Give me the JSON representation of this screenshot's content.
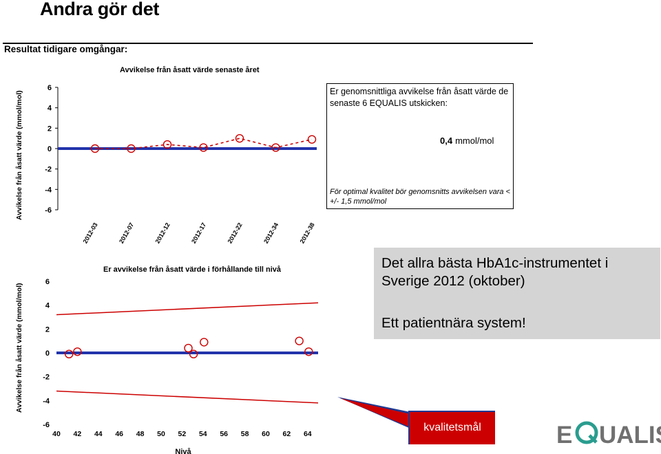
{
  "slide": {
    "title": "Andra gör det",
    "section_heading": "Resultat tidigare omgångar:"
  },
  "chart_data": [
    {
      "type": "line",
      "title": "Avvikelse från åsatt värde senaste året",
      "xlabel": "",
      "ylabel": "Avvikelse från åsatt värde (mmol/mol)",
      "categories": [
        "2012-03",
        "2012-07",
        "2012-12",
        "2012-17",
        "2012-22",
        "2012-34",
        "2012-38"
      ],
      "series": [
        {
          "values": [
            0,
            0,
            0.4,
            0.1,
            1.0,
            0.1,
            0.9
          ],
          "color": "#cc0000",
          "style": "dashed-with-circle-markers"
        }
      ],
      "reference_line": {
        "y": 0,
        "color": "#2233aa"
      },
      "yticks": [
        6,
        4,
        2,
        0,
        -2,
        -4,
        -6
      ],
      "ylim": [
        -6,
        6
      ],
      "grid": false
    },
    {
      "type": "scatter",
      "title": "Er avvikelse från åsatt värde i förhållande till nivå",
      "xlabel": "Nivå",
      "ylabel": "Avvikelse från åsatt värde (mmol/mol)",
      "xticks": [
        40,
        42,
        44,
        46,
        48,
        50,
        52,
        54,
        56,
        58,
        60,
        62,
        64
      ],
      "xlim": [
        40,
        65
      ],
      "yticks": [
        6,
        4,
        2,
        0,
        -2,
        -4,
        -6
      ],
      "ylim": [
        -6,
        6
      ],
      "points": [
        {
          "x": 41.2,
          "y": -0.1
        },
        {
          "x": 42.0,
          "y": 0.1
        },
        {
          "x": 52.6,
          "y": 0.4
        },
        {
          "x": 53.1,
          "y": -0.1
        },
        {
          "x": 54.1,
          "y": 0.9
        },
        {
          "x": 63.2,
          "y": 1.0
        },
        {
          "x": 64.1,
          "y": 0.1
        }
      ],
      "marker_color": "#cc0000",
      "reference_line": {
        "y": 0,
        "color": "#2233aa"
      },
      "limit_lines": [
        {
          "x": [
            40,
            65
          ],
          "y": [
            3.2,
            4.2
          ],
          "color": "#cc0000"
        },
        {
          "x": [
            40,
            65
          ],
          "y": [
            -3.2,
            -4.2
          ],
          "color": "#cc0000"
        }
      ],
      "grid": false
    }
  ],
  "infobox": {
    "question": "Er genomsnittliga avvikelse från åsatt värde de senaste 6 EQUALIS utskicken:",
    "value": "0,4",
    "unit": "mmol/mol",
    "note": "För optimal kvalitet bör genomsnitts avvikelsen vara < +/- 1,5 mmol/mol"
  },
  "greybox": {
    "line1": "Det allra bästa HbA1c-instrumentet i Sverige 2012 (oktober)",
    "line2": "Ett patientnära system!"
  },
  "callout": {
    "label": "kvalitetsmål"
  },
  "logo": {
    "text": "EQUALIS",
    "accent_color": "#2a9d8f"
  }
}
